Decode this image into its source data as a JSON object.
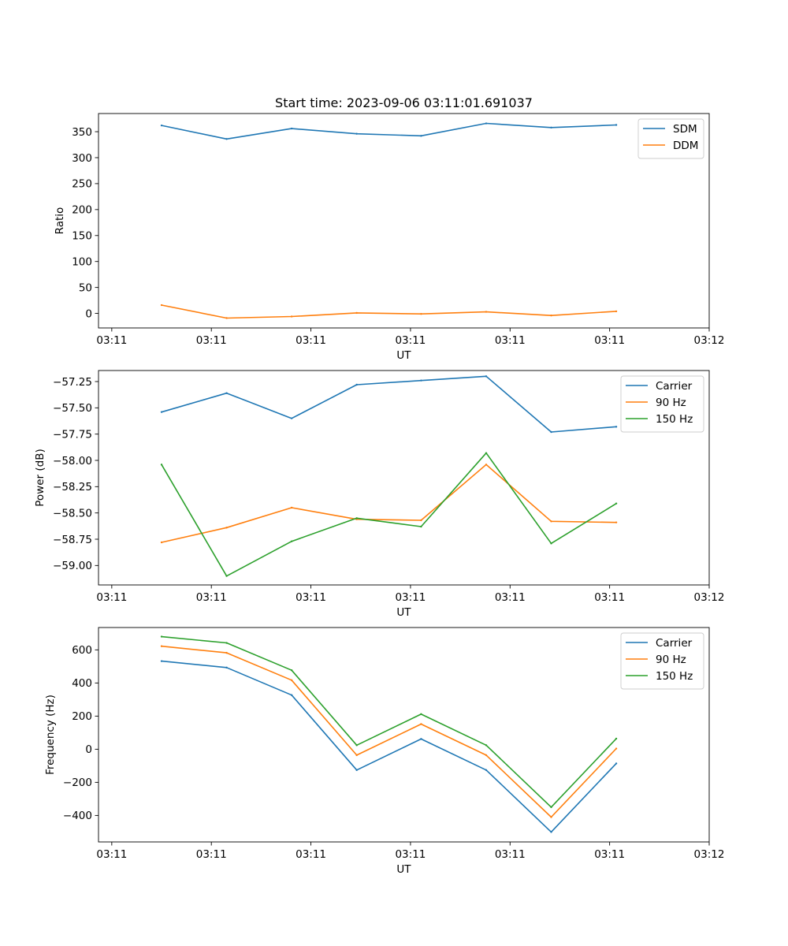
{
  "figure_title": "Start time: 2023-09-06 03:11:01.691037",
  "colors": {
    "blue": "#1f77b4",
    "orange": "#ff7f0e",
    "green": "#2ca02c"
  },
  "chart_data": [
    {
      "type": "line",
      "ylabel": "Ratio",
      "xlabel": "UT",
      "xlim": [
        0,
        9.2
      ],
      "xticks": [
        0.2,
        1.7,
        3.2,
        4.7,
        6.2,
        7.7,
        9.2
      ],
      "xtick_labels": [
        "03:11",
        "03:11",
        "03:11",
        "03:11",
        "03:11",
        "03:11",
        "03:12"
      ],
      "ylim": [
        -28,
        385
      ],
      "yticks": [
        0,
        50,
        100,
        150,
        200,
        250,
        300,
        350
      ],
      "legend": "top-right",
      "x": [
        0.95,
        1.93,
        2.91,
        3.89,
        4.86,
        5.84,
        6.82,
        7.8
      ],
      "series": [
        {
          "name": "SDM",
          "color": "blue",
          "values": [
            362,
            336,
            356,
            346,
            342,
            366,
            358,
            363
          ]
        },
        {
          "name": "DDM",
          "color": "orange",
          "values": [
            16,
            -9,
            -6,
            1,
            -1,
            3,
            -4,
            4
          ]
        }
      ]
    },
    {
      "type": "line",
      "ylabel": "Power (dB)",
      "xlabel": "UT",
      "xlim": [
        0,
        9.2
      ],
      "xticks": [
        0.2,
        1.7,
        3.2,
        4.7,
        6.2,
        7.7,
        9.2
      ],
      "xtick_labels": [
        "03:11",
        "03:11",
        "03:11",
        "03:11",
        "03:11",
        "03:11",
        "03:12"
      ],
      "ylim": [
        -59.185,
        -57.145
      ],
      "yticks": [
        -59.0,
        -58.75,
        -58.5,
        -58.25,
        -58.0,
        -57.75,
        -57.5,
        -57.25
      ],
      "ytick_labels": [
        "−59.00",
        "−58.75",
        "−58.50",
        "−58.25",
        "−58.00",
        "−57.75",
        "−57.50",
        "−57.25"
      ],
      "legend": "top-right",
      "x": [
        0.95,
        1.93,
        2.91,
        3.89,
        4.86,
        5.84,
        6.82,
        7.8
      ],
      "series": [
        {
          "name": "Carrier",
          "color": "blue",
          "values": [
            -57.54,
            -57.36,
            -57.6,
            -57.28,
            -57.24,
            -57.2,
            -57.73,
            -57.68
          ]
        },
        {
          "name": "90 Hz",
          "color": "orange",
          "values": [
            -58.78,
            -58.64,
            -58.45,
            -58.56,
            -58.57,
            -58.04,
            -58.58,
            -58.59
          ]
        },
        {
          "name": "150 Hz",
          "color": "green",
          "values": [
            -58.04,
            -59.1,
            -58.77,
            -58.55,
            -58.63,
            -57.93,
            -58.79,
            -58.41
          ]
        }
      ]
    },
    {
      "type": "line",
      "ylabel": "Frequency (Hz)",
      "xlabel": "UT",
      "xlim": [
        0,
        9.2
      ],
      "xticks": [
        0.2,
        1.7,
        3.2,
        4.7,
        6.2,
        7.7,
        9.2
      ],
      "xtick_labels": [
        "03:11",
        "03:11",
        "03:11",
        "03:11",
        "03:11",
        "03:11",
        "03:12"
      ],
      "ylim": [
        -560,
        735
      ],
      "yticks": [
        -400,
        -200,
        0,
        200,
        400,
        600
      ],
      "ytick_labels": [
        "−400",
        "−200",
        "0",
        "200",
        "400",
        "600"
      ],
      "legend": "top-right",
      "x": [
        0.95,
        1.93,
        2.91,
        3.89,
        4.86,
        5.84,
        6.82,
        7.8
      ],
      "series": [
        {
          "name": "Carrier",
          "color": "blue",
          "values": [
            532,
            493,
            327,
            -126,
            62,
            -126,
            -500,
            -86
          ]
        },
        {
          "name": "90 Hz",
          "color": "orange",
          "values": [
            622,
            582,
            417,
            -36,
            152,
            -36,
            -410,
            4
          ]
        },
        {
          "name": "150 Hz",
          "color": "green",
          "values": [
            680,
            642,
            477,
            24,
            212,
            24,
            -350,
            64
          ]
        }
      ]
    }
  ]
}
